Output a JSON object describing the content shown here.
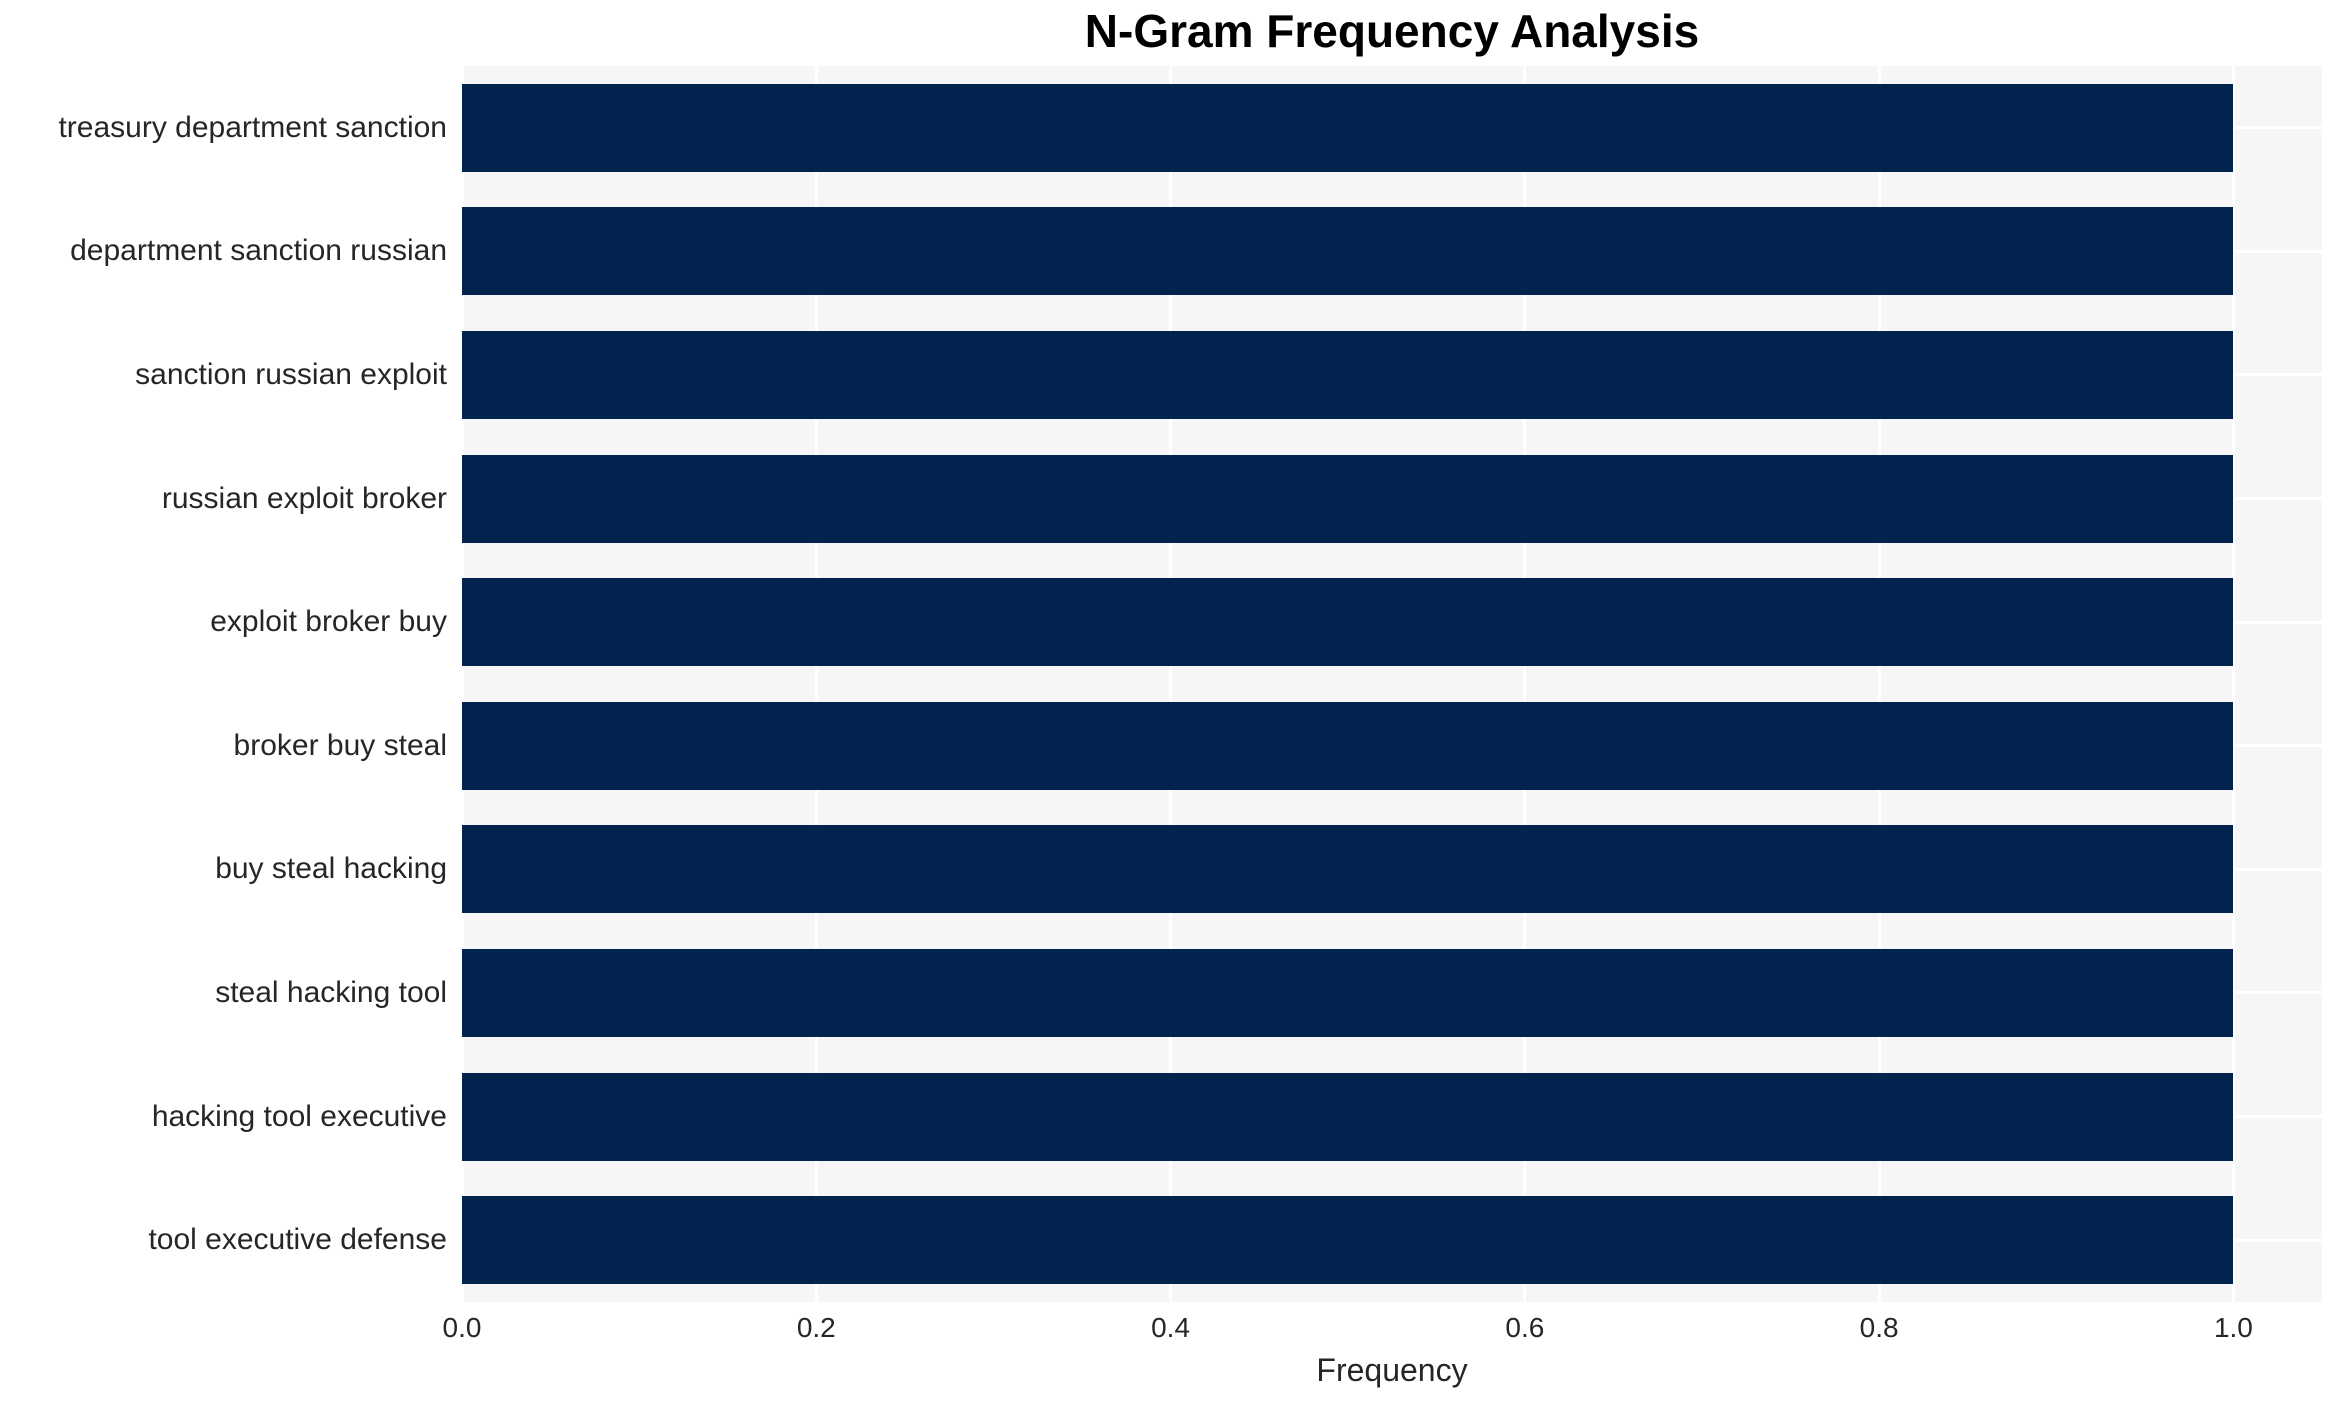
{
  "title": "N-Gram Frequency Analysis",
  "chart_data": {
    "type": "bar",
    "orientation": "horizontal",
    "title": "N-Gram Frequency Analysis",
    "xlabel": "Frequency",
    "ylabel": "",
    "categories": [
      "treasury department sanction",
      "department sanction russian",
      "sanction russian exploit",
      "russian exploit broker",
      "exploit broker buy",
      "broker buy steal",
      "buy steal hacking",
      "steal hacking tool",
      "hacking tool executive",
      "tool executive defense"
    ],
    "values": [
      1.0,
      1.0,
      1.0,
      1.0,
      1.0,
      1.0,
      1.0,
      1.0,
      1.0,
      1.0
    ],
    "xlim": [
      0,
      1.05
    ],
    "xticks": [
      0.0,
      0.2,
      0.4,
      0.6,
      0.8,
      1.0
    ],
    "xtick_labels": [
      "0.0",
      "0.2",
      "0.4",
      "0.6",
      "0.8",
      "1.0"
    ],
    "grid": true,
    "legend": false,
    "colors": {
      "bar": "#02234e",
      "plot_background": "#f6f6f7",
      "gridline": "#ffffff",
      "tick_text": "#262626",
      "title_text": "#000000"
    }
  }
}
